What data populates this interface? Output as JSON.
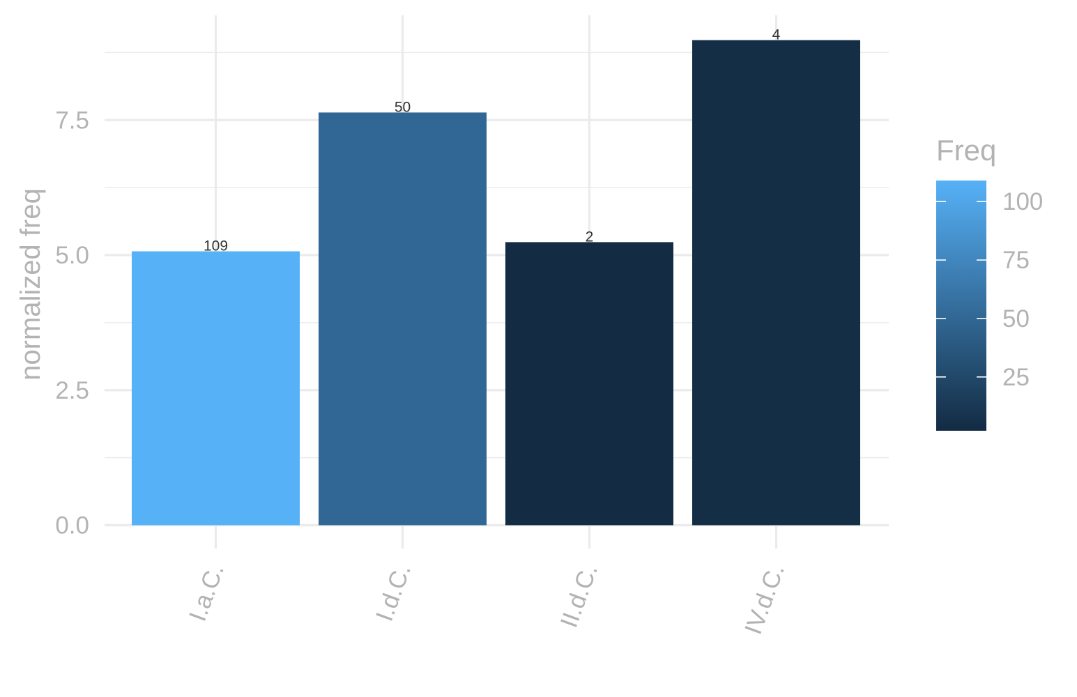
{
  "chart_data": {
    "type": "bar",
    "categories": [
      "I.a.C.",
      "I.d.C.",
      "II.d.C.",
      "IV.d.C."
    ],
    "values": [
      5.07,
      7.64,
      5.24,
      8.98
    ],
    "bar_labels": [
      "109",
      "50",
      "2",
      "4"
    ],
    "fill_values": [
      109,
      50,
      2,
      4
    ],
    "xlabel": "",
    "ylabel": "normalized freq",
    "ylim": [
      0,
      9.5
    ],
    "yticks": [
      0,
      2.5,
      5,
      7.5
    ],
    "ytick_labels": [
      "0.0",
      "2.5",
      "5.0",
      "7.5"
    ],
    "grid": true,
    "legend": {
      "title": "Freq",
      "placement": "right",
      "range": [
        2,
        109
      ],
      "ticks": [
        25,
        50,
        75,
        100
      ],
      "tick_labels": [
        "25",
        "50",
        "75",
        "100"
      ],
      "color_low": "#132b43",
      "color_high": "#56b1f7"
    }
  }
}
